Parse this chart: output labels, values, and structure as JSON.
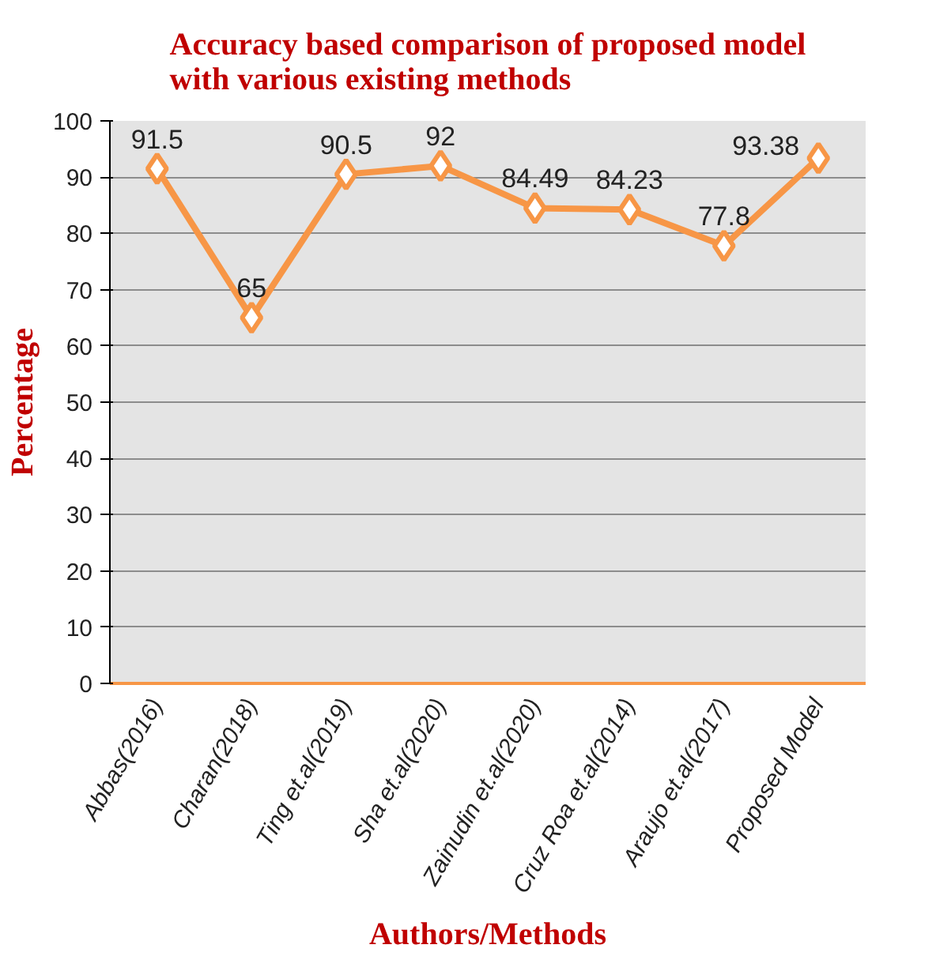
{
  "chart_data": {
    "type": "line",
    "title": "Accuracy based comparison of proposed model with various existing methods",
    "xlabel": "Authors/Methods",
    "ylabel": "Percentage",
    "categories": [
      "Abbas(2016)",
      "Charan(2018)",
      "Ting et.al(2019)",
      "Sha et.al(2020)",
      "Zainudin et.al(2020)",
      "Cruz Roa et.al(2014)",
      "Araujo et.al(2017)",
      "Proposed Model"
    ],
    "series": [
      {
        "color": "#f79646",
        "values": [
          91.5,
          65,
          90.5,
          92,
          84.49,
          84.23,
          77.8,
          93.38
        ]
      }
    ],
    "ylim": [
      0,
      100
    ],
    "yticks": [
      0,
      10,
      20,
      30,
      40,
      50,
      60,
      70,
      80,
      90,
      100
    ],
    "grid": "y",
    "marker": "diamond",
    "line_style": "solid",
    "data_labels": true
  }
}
